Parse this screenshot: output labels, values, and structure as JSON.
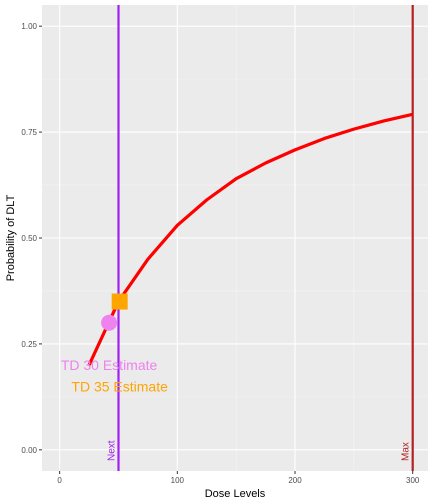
{
  "chart_data": {
    "type": "line",
    "xlabel": "Dose Levels",
    "ylabel": "Probability of DLT",
    "xlim": [
      -15,
      313
    ],
    "ylim": [
      -0.05,
      1.05
    ],
    "x_ticks": [
      0,
      100,
      200,
      300
    ],
    "x_tick_labels": [
      "0",
      "100",
      "200",
      "300"
    ],
    "y_ticks": [
      0,
      0.25,
      0.5,
      0.75,
      1.0
    ],
    "y_tick_labels": [
      "0.00",
      "0.25",
      "0.50",
      "0.75",
      "1.00"
    ],
    "grid": true,
    "series": [
      {
        "color": "#ff0000",
        "x": [
          25,
          50,
          75,
          100,
          125,
          150,
          175,
          200,
          225,
          250,
          275,
          300
        ],
        "values": [
          0.2,
          0.35,
          0.45,
          0.53,
          0.59,
          0.64,
          0.677,
          0.708,
          0.735,
          0.757,
          0.776,
          0.792
        ]
      }
    ],
    "points": [
      {
        "name": "TD 30 Estimate",
        "x": 42,
        "y": 0.3,
        "shape": "circle",
        "color": "#ee82ee"
      },
      {
        "name": "TD 35 Estimate",
        "x": 51,
        "y": 0.35,
        "shape": "square",
        "color": "#ffa500"
      }
    ],
    "vlines": [
      {
        "label": "Next",
        "x": 50,
        "color": "#a020f0"
      },
      {
        "label": "Max",
        "x": 300,
        "color": "#b22222"
      }
    ],
    "annotations": [
      {
        "text": "TD 30 Estimate",
        "x": 42,
        "y": 0.2,
        "color": "#ee82ee"
      },
      {
        "text": "TD 35 Estimate",
        "x": 51,
        "y": 0.15,
        "color": "#ffa500"
      }
    ]
  }
}
